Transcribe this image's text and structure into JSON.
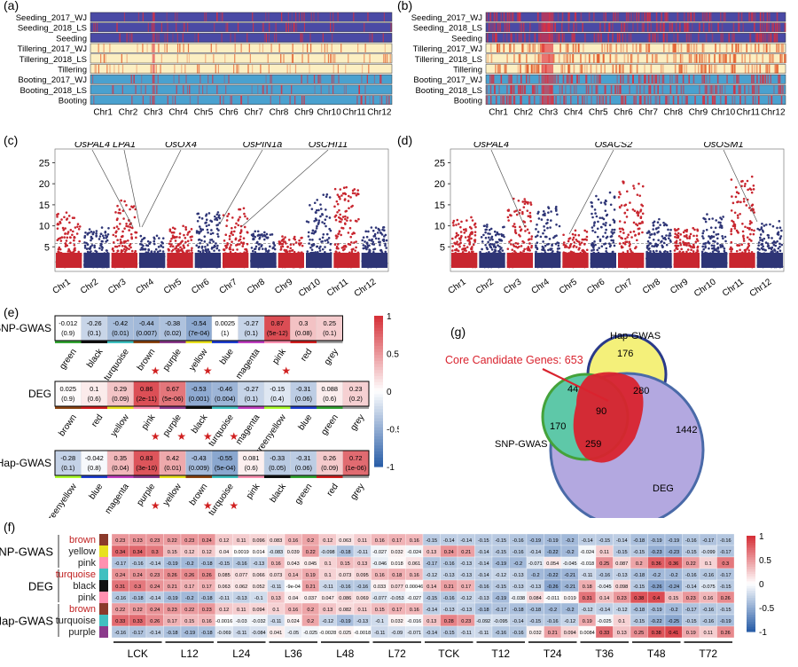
{
  "panels": {
    "a": "(a)",
    "b": "(b)",
    "c": "(c)",
    "d": "(d)",
    "e": "(e)",
    "f": "(f)",
    "g": "(g)"
  },
  "tracks": [
    "Seeding_2017_WJ",
    "Seeding_2018_LS",
    "Seeding",
    "Tillering_2017_WJ",
    "Tillering_2018_LS",
    "Tillering",
    "Booting_2017_WJ",
    "Booting_2018_LS",
    "Booting"
  ],
  "chromosomes": [
    "Chr1",
    "Chr2",
    "Chr3",
    "Chr4",
    "Chr5",
    "Chr6",
    "Chr7",
    "Chr8",
    "Chr9",
    "Chr10",
    "Chr11",
    "Chr12"
  ],
  "colors": {
    "red": "#c8262f",
    "blue": "#2e3576",
    "purple": "#4a4aa5",
    "cream": "#fcefc2",
    "skyblue": "#4aa1cf",
    "pos": "#d6323a",
    "neg": "#2b5fa8"
  },
  "manhattan": {
    "yticks": [
      "5",
      "10",
      "15",
      "20",
      "25"
    ],
    "c_labels": [
      "OsPAL4",
      "LPA1",
      "OsOX4",
      "OsPIN1a",
      "OsCHI11"
    ],
    "d_labels": [
      "OsPAL4",
      "OsACS2",
      "OsOSM1"
    ]
  },
  "colorbar": [
    "1",
    "0.5",
    "0",
    "-0.5",
    "-1"
  ],
  "heatmap_e": [
    {
      "name": "SNP-GWAS",
      "modules": [
        "green",
        "black",
        "turquoise",
        "brown",
        "purple",
        "yellow",
        "blue",
        "magenta",
        "pink",
        "red",
        "grey"
      ],
      "swatches": [
        "#33a333",
        "#111111",
        "#40c0c0",
        "#8b4513",
        "#8b3a8b",
        "#e8e020",
        "#2040d0",
        "#c040c0",
        "#ff90b0",
        "#d02020",
        "#a0a0a0"
      ],
      "stars": [
        false,
        false,
        false,
        true,
        false,
        true,
        false,
        false,
        true,
        false,
        false
      ],
      "r": [
        "-0.012",
        "-0.26",
        "-0.42",
        "-0.44",
        "-0.38",
        "-0.54",
        "0.0025",
        "-0.27",
        "0.87",
        "0.3",
        "0.25"
      ],
      "rv": [
        -0.01,
        -0.26,
        -0.42,
        -0.44,
        -0.38,
        -0.54,
        0.0,
        -0.27,
        0.87,
        0.3,
        0.25
      ],
      "p": [
        "(0.9)",
        "(0.1)",
        "(0.01)",
        "(0.007)",
        "(0.02)",
        "(7e-04)",
        "(1)",
        "(0.1)",
        "(5e-12)",
        "(0.08)",
        "(0.1)"
      ]
    },
    {
      "name": "DEG",
      "modules": [
        "brown",
        "red",
        "yellow",
        "pink",
        "purple",
        "black",
        "turquoise",
        "magenta",
        "greenyellow",
        "blue",
        "green",
        "grey"
      ],
      "swatches": [
        "#8b4513",
        "#d02020",
        "#e8e020",
        "#ff90b0",
        "#8b3a8b",
        "#111111",
        "#40c0c0",
        "#c040c0",
        "#adff2f",
        "#2040d0",
        "#33a333",
        "#a0a0a0"
      ],
      "stars": [
        false,
        false,
        false,
        true,
        true,
        true,
        true,
        false,
        false,
        false,
        false,
        false
      ],
      "r": [
        "0.025",
        "0.1",
        "0.29",
        "0.86",
        "0.67",
        "-0.53",
        "-0.46",
        "-0.27",
        "-0.15",
        "-0.31",
        "0.088",
        "0.23"
      ],
      "rv": [
        0.02,
        0.1,
        0.29,
        0.86,
        0.67,
        -0.53,
        -0.46,
        -0.27,
        -0.15,
        -0.31,
        0.09,
        0.23
      ],
      "p": [
        "(0.9)",
        "(0.6)",
        "(0.09)",
        "(2e-11)",
        "(5e-06)",
        "(0.001)",
        "(0.004)",
        "(0.1)",
        "(0.4)",
        "(0.06)",
        "(0.6)",
        "(0.2)"
      ]
    },
    {
      "name": "Hap-GWAS",
      "modules": [
        "greenyellow",
        "blue",
        "magenta",
        "purple",
        "yellow",
        "brown",
        "turquoise",
        "pink",
        "black",
        "green",
        "red",
        "grey"
      ],
      "swatches": [
        "#adff2f",
        "#2040d0",
        "#c040c0",
        "#8b3a8b",
        "#e8e020",
        "#8b4513",
        "#40c0c0",
        "#ff90b0",
        "#111111",
        "#33a333",
        "#d02020",
        "#a0a0a0"
      ],
      "stars": [
        false,
        false,
        false,
        true,
        false,
        true,
        true,
        false,
        false,
        false,
        false,
        false
      ],
      "r": [
        "-0.28",
        "-0.042",
        "0.35",
        "0.83",
        "0.42",
        "-0.43",
        "-0.55",
        "0.081",
        "-0.33",
        "-0.31",
        "0.26",
        "0.72"
      ],
      "rv": [
        -0.28,
        -0.04,
        0.35,
        0.83,
        0.42,
        -0.43,
        -0.55,
        0.08,
        -0.33,
        -0.31,
        0.26,
        0.72
      ],
      "p": [
        "(0.1)",
        "(0.8)",
        "(0.04)",
        "(3e-10)",
        "(0.01)",
        "(0.009)",
        "(5e-04)",
        "(0.6)",
        "(0.05)",
        "(0.06)",
        "(0.09)",
        "(1e-06)"
      ]
    }
  ],
  "venn": {
    "core_label": "Core Candidate Genes: 653",
    "sets": [
      "Hap-GWAS",
      "SNP-GWAS",
      "DEG"
    ],
    "counts": {
      "hap_only": "176",
      "hap_deg": "280",
      "hap_snp": "44",
      "all": "90",
      "snp_only": "170",
      "snp_deg": "259",
      "deg_only": "1442"
    }
  },
  "heatmap_f": {
    "groups": [
      "SNP-GWAS",
      "DEG",
      "Hap-GWAS"
    ],
    "rows": [
      {
        "g": 0,
        "name": "brown",
        "red": true,
        "swatch": "#8b3a2b",
        "v": [
          "0.23",
          "0.23",
          "0.23",
          "0.22",
          "0.23",
          "0.24",
          "0.12",
          "0.11",
          "0.096",
          "0.083",
          "0.16",
          "0.2",
          "0.12",
          "0.063",
          "0.11",
          "0.16",
          "0.17",
          "0.16",
          "-0.15",
          "-0.14",
          "-0.14",
          "-0.15",
          "-0.15",
          "-0.16",
          "-0.19",
          "-0.19",
          "-0.2",
          "-0.14",
          "-0.15",
          "-0.14",
          "-0.18",
          "-0.19",
          "-0.19",
          "-0.16",
          "-0.17",
          "-0.16"
        ]
      },
      {
        "g": 0,
        "name": "yellow",
        "red": false,
        "swatch": "#e8e020",
        "v": [
          "0.34",
          "0.34",
          "0.3",
          "0.15",
          "0.12",
          "0.12",
          "0.04",
          "0.0019",
          "0.014",
          "-0.083",
          "0.039",
          "0.22",
          "-0.098",
          "-0.18",
          "-0.11",
          "-0.027",
          "0.032",
          "-0.024",
          "0.13",
          "0.24",
          "0.21",
          "-0.14",
          "-0.15",
          "-0.16",
          "-0.14",
          "-0.22",
          "-0.2",
          "-0.024",
          "0.11",
          "-0.15",
          "-0.15",
          "-0.23",
          "-0.23",
          "-0.15",
          "-0.099",
          "-0.17"
        ]
      },
      {
        "g": 0,
        "name": "pink",
        "red": false,
        "swatch": "#ff90b0",
        "v": [
          "-0.17",
          "-0.16",
          "-0.14",
          "-0.19",
          "-0.2",
          "-0.18",
          "-0.15",
          "-0.16",
          "-0.13",
          "0.16",
          "0.043",
          "0.045",
          "0.1",
          "0.15",
          "0.13",
          "-0.046",
          "0.018",
          "0.061",
          "-0.17",
          "-0.16",
          "-0.13",
          "-0.14",
          "-0.19",
          "-0.2",
          "-0.071",
          "0.054",
          "-0.045",
          "-0.018",
          "0.25",
          "0.087",
          "0.2",
          "0.36",
          "0.36",
          "0.22",
          "0.1",
          "0.3"
        ]
      },
      {
        "g": 1,
        "name": "turquoise",
        "red": true,
        "swatch": "#40c0c0",
        "v": [
          "0.24",
          "0.24",
          "0.23",
          "0.26",
          "0.26",
          "0.26",
          "0.085",
          "0.077",
          "0.066",
          "0.073",
          "0.14",
          "0.19",
          "0.1",
          "0.073",
          "0.095",
          "0.16",
          "0.18",
          "0.16",
          "-0.12",
          "-0.13",
          "-0.13",
          "-0.14",
          "-0.12",
          "-0.13",
          "-0.2",
          "-0.22",
          "-0.21",
          "-0.11",
          "-0.16",
          "-0.13",
          "-0.18",
          "-0.2",
          "-0.2",
          "-0.16",
          "-0.16",
          "-0.17"
        ]
      },
      {
        "g": 1,
        "name": "black",
        "red": false,
        "swatch": "#111111",
        "v": [
          "0.31",
          "0.3",
          "0.24",
          "0.21",
          "0.17",
          "0.17",
          "0.063",
          "0.062",
          "0.052",
          "-0.11",
          "-9e-04",
          "0.21",
          "-0.11",
          "-0.16",
          "-0.16",
          "0.033",
          "0.077",
          "0.00046",
          "0.14",
          "0.21",
          "0.17",
          "-0.16",
          "-0.15",
          "-0.13",
          "-0.13",
          "-0.26",
          "-0.21",
          "0.18",
          "-0.045",
          "0.098",
          "-0.15",
          "-0.26",
          "-0.24",
          "-0.14",
          "-0.075",
          "-0.15"
        ]
      },
      {
        "g": 1,
        "name": "pink",
        "red": false,
        "swatch": "#ff90b0",
        "v": [
          "-0.16",
          "-0.18",
          "-0.14",
          "-0.19",
          "-0.2",
          "-0.18",
          "-0.11",
          "-0.13",
          "-0.1",
          "0.13",
          "0.04",
          "0.037",
          "0.047",
          "0.086",
          "0.069",
          "-0.077",
          "-0.053",
          "-0.027",
          "-0.15",
          "-0.16",
          "-0.12",
          "-0.13",
          "-0.19",
          "-0.038",
          "0.084",
          "-0.011",
          "0.019",
          "0.31",
          "0.14",
          "0.23",
          "0.38",
          "0.4",
          "0.15",
          "0.23",
          "0.16",
          "0.26"
        ]
      },
      {
        "g": 2,
        "name": "brown",
        "red": true,
        "swatch": "#8b3a2b",
        "v": [
          "0.22",
          "0.22",
          "0.24",
          "0.23",
          "0.22",
          "0.23",
          "0.12",
          "0.11",
          "0.094",
          "0.1",
          "0.16",
          "0.2",
          "0.13",
          "0.082",
          "0.11",
          "0.15",
          "0.17",
          "0.16",
          "-0.14",
          "-0.13",
          "-0.13",
          "-0.18",
          "-0.17",
          "-0.18",
          "-0.18",
          "-0.2",
          "-0.2",
          "-0.12",
          "-0.14",
          "-0.12",
          "-0.18",
          "-0.19",
          "-0.2",
          "-0.17",
          "-0.16",
          "-0.15"
        ]
      },
      {
        "g": 2,
        "name": "turquoise",
        "red": false,
        "swatch": "#40c0c0",
        "v": [
          "0.33",
          "0.33",
          "0.26",
          "0.17",
          "0.15",
          "0.16",
          "-0.0016",
          "-0.03",
          "-0.032",
          "-0.11",
          "0.024",
          "0.2",
          "-0.12",
          "-0.19",
          "-0.13",
          "-0.1",
          "0.032",
          "-0.016",
          "0.13",
          "0.28",
          "0.23",
          "-0.092",
          "-0.095",
          "-0.14",
          "-0.15",
          "-0.16",
          "-0.12",
          "0.19",
          "-0.025",
          "0.1",
          "-0.15",
          "-0.22",
          "-0.25",
          "-0.15",
          "-0.16",
          "-0.19"
        ]
      },
      {
        "g": 2,
        "name": "purple",
        "red": false,
        "swatch": "#8b3a8b",
        "v": [
          "-0.16",
          "-0.17",
          "-0.14",
          "-0.18",
          "-0.19",
          "-0.18",
          "-0.069",
          "-0.11",
          "-0.084",
          "0.041",
          "-0.05",
          "-0.025",
          "-0.0028",
          "0.025",
          "-0.0018",
          "-0.11",
          "-0.09",
          "-0.071",
          "-0.14",
          "-0.15",
          "-0.11",
          "-0.11",
          "-0.16",
          "-0.16",
          "0.032",
          "0.21",
          "0.094",
          "0.0084",
          "0.33",
          "0.13",
          "0.25",
          "0.38",
          "0.41",
          "0.19",
          "0.11",
          "0.26"
        ]
      }
    ],
    "xlabels": [
      "LCK",
      "L12",
      "L24",
      "L36",
      "L48",
      "L72",
      "TCK",
      "T12",
      "T24",
      "T36",
      "T48",
      "T72"
    ],
    "colorbar": [
      "1",
      "0.5",
      "0",
      "-0.5",
      "-1"
    ]
  }
}
